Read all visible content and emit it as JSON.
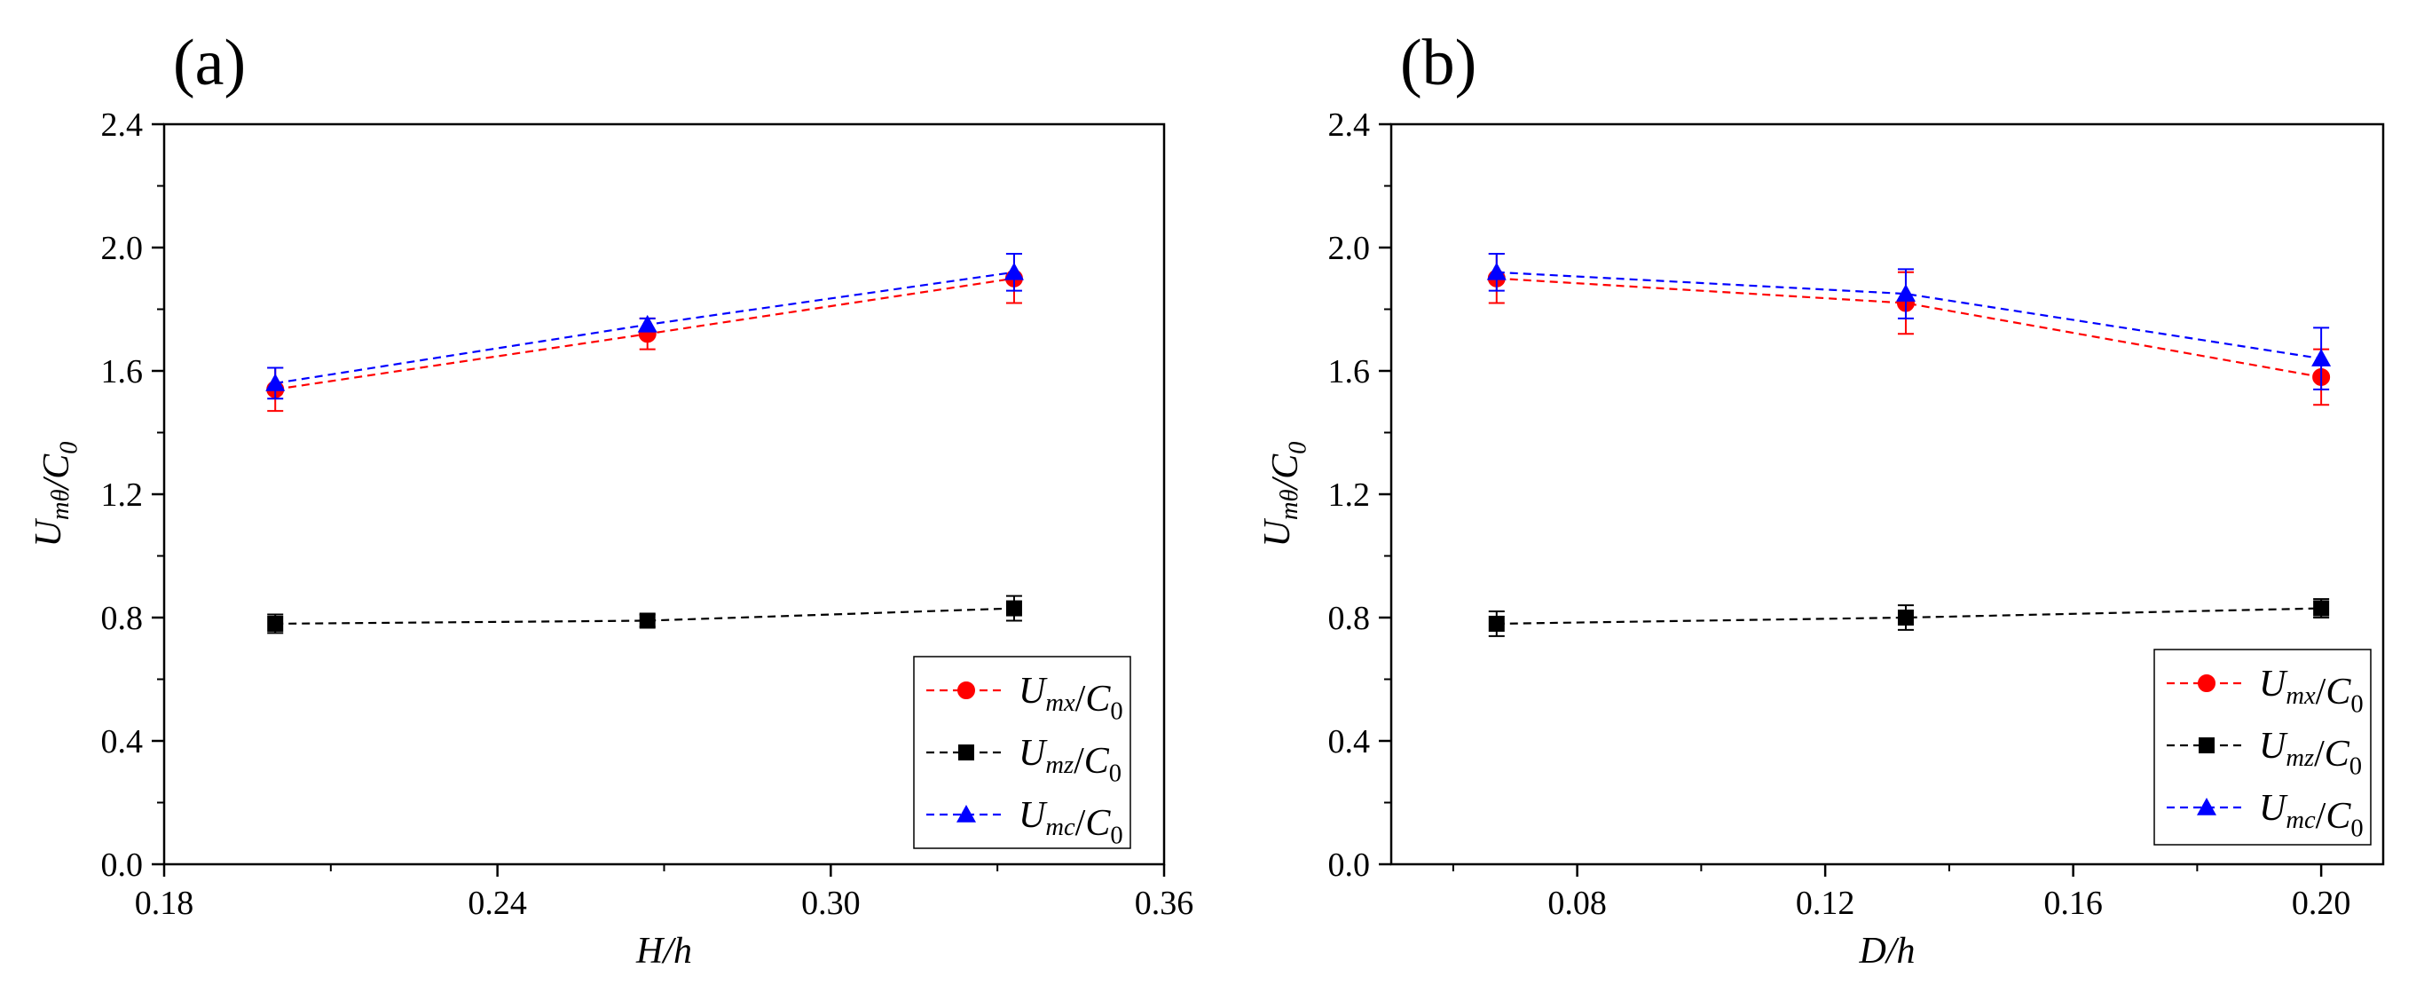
{
  "chart_data": [
    {
      "type": "scatter",
      "panel_label": "(a)",
      "xlabel": "H/h",
      "ylabel": "Umθ/C0",
      "xlim": [
        0.18,
        0.36
      ],
      "ylim": [
        0.0,
        2.4
      ],
      "xticks": [
        "0.18",
        "0.24",
        "0.30",
        "0.36"
      ],
      "yticks": [
        "0.0",
        "0.4",
        "0.8",
        "1.2",
        "1.6",
        "2.0",
        "2.4"
      ],
      "legend_position": "bottom-right",
      "grid": false,
      "x": [
        0.2,
        0.267,
        0.333
      ],
      "series": [
        {
          "name": "Umx/C0",
          "color": "#ff0000",
          "marker": "circle",
          "values": [
            1.54,
            1.72,
            1.9
          ],
          "errors": [
            0.07,
            0.05,
            0.08
          ]
        },
        {
          "name": "Umz/C0",
          "color": "#000000",
          "marker": "square",
          "values": [
            0.78,
            0.79,
            0.83
          ],
          "errors": [
            0.03,
            0.02,
            0.04
          ]
        },
        {
          "name": "Umc/C0",
          "color": "#0000ff",
          "marker": "triangle",
          "values": [
            1.56,
            1.75,
            1.92
          ],
          "errors": [
            0.05,
            0.02,
            0.06
          ]
        }
      ]
    },
    {
      "type": "scatter",
      "panel_label": "(b)",
      "xlabel": "D/h",
      "ylabel": "Umθ/C0",
      "xlim": [
        0.05,
        0.21
      ],
      "ylim": [
        0.0,
        2.4
      ],
      "xticks": [
        "0.08",
        "0.12",
        "0.16",
        "0.20"
      ],
      "yticks": [
        "0.0",
        "0.4",
        "0.8",
        "1.2",
        "1.6",
        "2.0",
        "2.4"
      ],
      "legend_position": "bottom-right",
      "grid": false,
      "x": [
        0.067,
        0.133,
        0.2
      ],
      "series": [
        {
          "name": "Umx/C0",
          "color": "#ff0000",
          "marker": "circle",
          "values": [
            1.9,
            1.82,
            1.58
          ],
          "errors": [
            0.08,
            0.1,
            0.09
          ]
        },
        {
          "name": "Umz/C0",
          "color": "#000000",
          "marker": "square",
          "values": [
            0.78,
            0.8,
            0.83
          ],
          "errors": [
            0.04,
            0.04,
            0.03
          ]
        },
        {
          "name": "Umc/C0",
          "color": "#0000ff",
          "marker": "triangle",
          "values": [
            1.92,
            1.85,
            1.64
          ],
          "errors": [
            0.06,
            0.08,
            0.1
          ]
        }
      ]
    }
  ]
}
